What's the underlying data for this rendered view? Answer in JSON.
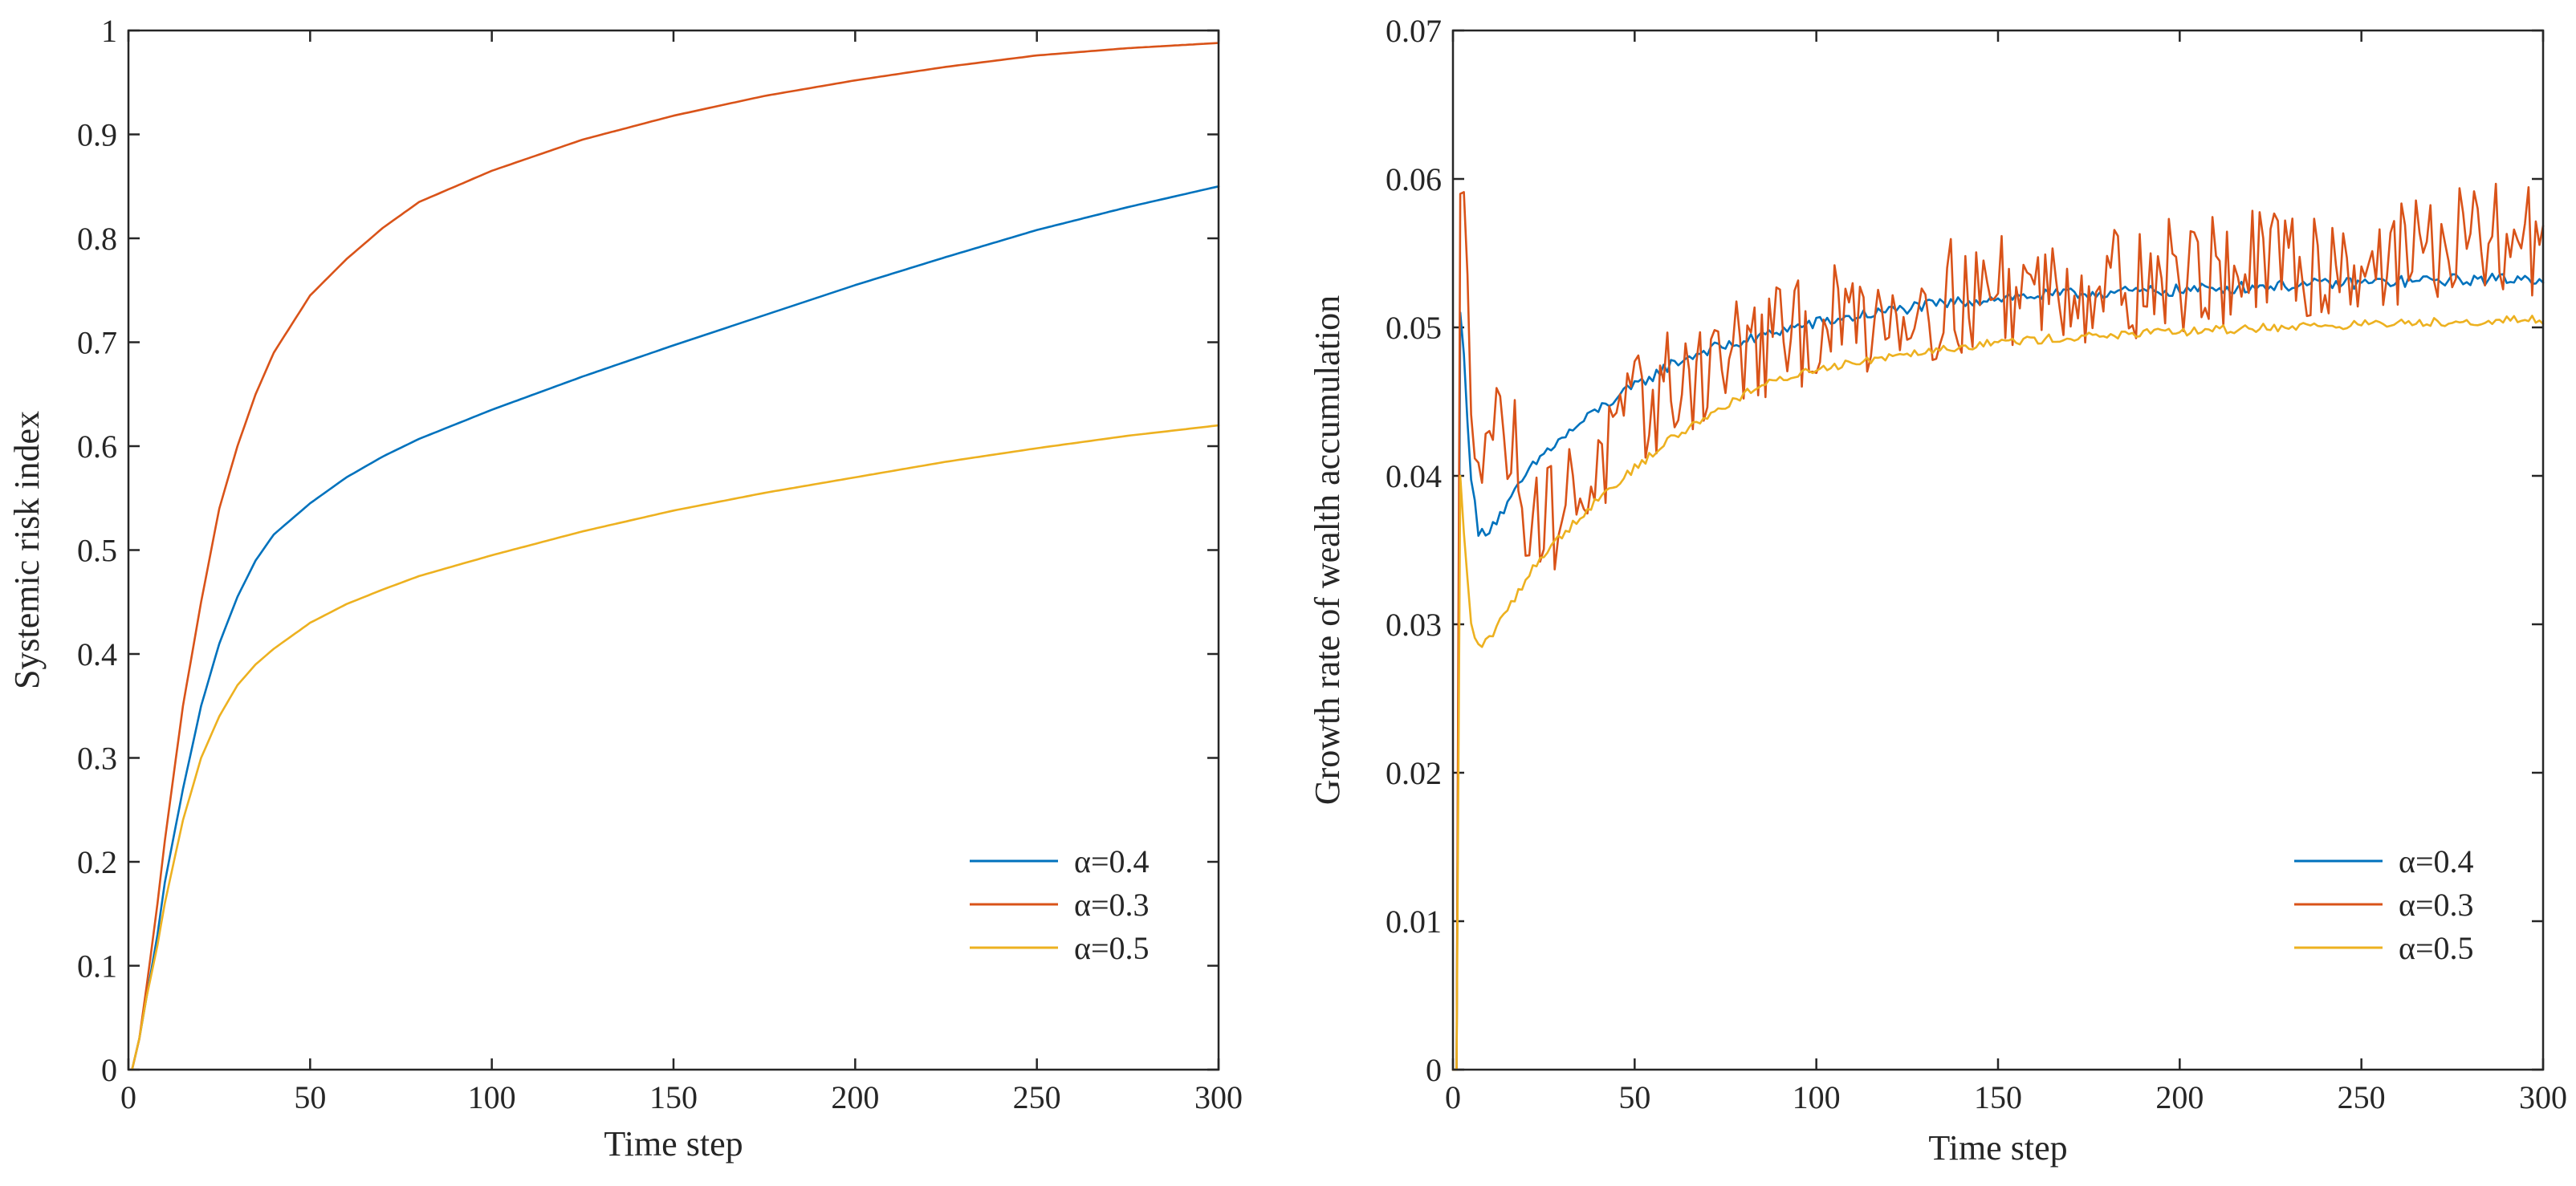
{
  "colors": {
    "blue": "#0072BD",
    "orange": "#D95319",
    "yellow": "#EDB120"
  },
  "chart_data": [
    {
      "type": "line",
      "title": "",
      "xlabel": "Time step",
      "ylabel": "Systemic risk index",
      "xlim": [
        0,
        300
      ],
      "ylim": [
        0,
        1
      ],
      "xticks": [
        "0",
        "50",
        "100",
        "150",
        "200",
        "250",
        "300"
      ],
      "yticks": [
        "0",
        "0.1",
        "0.2",
        "0.3",
        "0.4",
        "0.5",
        "0.6",
        "0.7",
        "0.8",
        "0.9",
        "1"
      ],
      "legend_position": "bottom-right",
      "series": [
        {
          "name": "α=0.4",
          "color": "#0072BD",
          "x": [
            1,
            3,
            5,
            8,
            10,
            15,
            20,
            25,
            30,
            35,
            40,
            50,
            60,
            70,
            80,
            100,
            125,
            150,
            175,
            200,
            225,
            250,
            275,
            300
          ],
          "y": [
            0,
            0.03,
            0.07,
            0.13,
            0.18,
            0.27,
            0.35,
            0.41,
            0.455,
            0.49,
            0.515,
            0.545,
            0.57,
            0.59,
            0.607,
            0.635,
            0.667,
            0.697,
            0.726,
            0.755,
            0.782,
            0.808,
            0.83,
            0.85
          ]
        },
        {
          "name": "α=0.3",
          "color": "#D95319",
          "x": [
            1,
            3,
            5,
            8,
            10,
            15,
            20,
            25,
            30,
            35,
            40,
            50,
            60,
            70,
            80,
            100,
            125,
            150,
            175,
            200,
            225,
            250,
            275,
            300
          ],
          "y": [
            0,
            0.03,
            0.08,
            0.16,
            0.22,
            0.35,
            0.45,
            0.54,
            0.6,
            0.65,
            0.69,
            0.745,
            0.78,
            0.81,
            0.835,
            0.865,
            0.895,
            0.918,
            0.937,
            0.952,
            0.965,
            0.976,
            0.983,
            0.988
          ]
        },
        {
          "name": "α=0.5",
          "color": "#EDB120",
          "x": [
            1,
            3,
            5,
            8,
            10,
            15,
            20,
            25,
            30,
            35,
            40,
            50,
            60,
            70,
            80,
            100,
            125,
            150,
            175,
            200,
            225,
            250,
            275,
            300
          ],
          "y": [
            0,
            0.03,
            0.07,
            0.12,
            0.16,
            0.24,
            0.3,
            0.34,
            0.37,
            0.39,
            0.405,
            0.43,
            0.448,
            0.462,
            0.475,
            0.495,
            0.518,
            0.538,
            0.555,
            0.57,
            0.585,
            0.598,
            0.61,
            0.62
          ]
        }
      ]
    },
    {
      "type": "line",
      "title": "",
      "xlabel": "Time step",
      "ylabel": "Growth rate of wealth accumulation",
      "xlim": [
        0,
        300
      ],
      "ylim": [
        0,
        0.07
      ],
      "xticks": [
        "0",
        "50",
        "100",
        "150",
        "200",
        "250",
        "300"
      ],
      "yticks": [
        "0",
        "0.01",
        "0.02",
        "0.03",
        "0.04",
        "0.05",
        "0.06",
        "0.07"
      ],
      "legend_position": "bottom-right",
      "series": [
        {
          "name": "α=0.4",
          "color": "#0072BD",
          "noise": 0.0004,
          "x": [
            1,
            2,
            3,
            5,
            7,
            10,
            15,
            20,
            25,
            30,
            40,
            50,
            60,
            70,
            80,
            90,
            100,
            125,
            150,
            175,
            200,
            225,
            250,
            275,
            300
          ],
          "y": [
            0,
            0.051,
            0.048,
            0.04,
            0.036,
            0.0365,
            0.038,
            0.04,
            0.0415,
            0.0425,
            0.0445,
            0.046,
            0.0475,
            0.0485,
            0.049,
            0.0498,
            0.0503,
            0.0513,
            0.052,
            0.0523,
            0.0525,
            0.0528,
            0.053,
            0.0532,
            0.0533
          ]
        },
        {
          "name": "α=0.3",
          "color": "#D95319",
          "noise": 0.004,
          "x": [
            1,
            2,
            3,
            5,
            8,
            10,
            15,
            20,
            25,
            30,
            40,
            50,
            60,
            70,
            80,
            90,
            100,
            125,
            150,
            175,
            200,
            225,
            250,
            275,
            300
          ],
          "y": [
            0,
            0.059,
            0.057,
            0.045,
            0.0435,
            0.0435,
            0.043,
            0.0385,
            0.037,
            0.038,
            0.0405,
            0.044,
            0.046,
            0.0475,
            0.0485,
            0.049,
            0.05,
            0.0515,
            0.0525,
            0.053,
            0.0535,
            0.054,
            0.0545,
            0.0555,
            0.056
          ]
        },
        {
          "name": "α=0.5",
          "color": "#EDB120",
          "noise": 0.0003,
          "x": [
            1,
            2,
            3,
            5,
            7,
            10,
            15,
            20,
            25,
            30,
            40,
            50,
            60,
            70,
            80,
            90,
            100,
            125,
            150,
            175,
            200,
            225,
            250,
            275,
            300
          ],
          "y": [
            0,
            0.04,
            0.036,
            0.03,
            0.0285,
            0.029,
            0.031,
            0.033,
            0.0348,
            0.036,
            0.0385,
            0.0405,
            0.0425,
            0.044,
            0.0455,
            0.0465,
            0.0472,
            0.0483,
            0.049,
            0.0494,
            0.0497,
            0.05,
            0.0502,
            0.0504,
            0.0505
          ]
        }
      ]
    }
  ]
}
